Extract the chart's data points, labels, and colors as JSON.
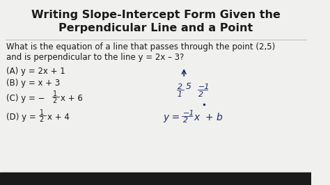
{
  "title_line1": "Writing Slope-Intercept Form Given the",
  "title_line2": "Perpendicular Line and a Point",
  "question_line1": "What is the equation of a line that passes through the point (2,5)",
  "question_line2": "and is perpendicular to the line y = 2x – 3?",
  "option_A": "(A) y = 2x + 1",
  "option_B": "(B) y = x + 3",
  "bg_color": "#f0f0ee",
  "dark_bar": "#2a2a2a",
  "text_color": "#1a1a1a",
  "handwritten_color": "#1e2d6b",
  "title_fontsize": 11.5,
  "body_fontsize": 8.5
}
